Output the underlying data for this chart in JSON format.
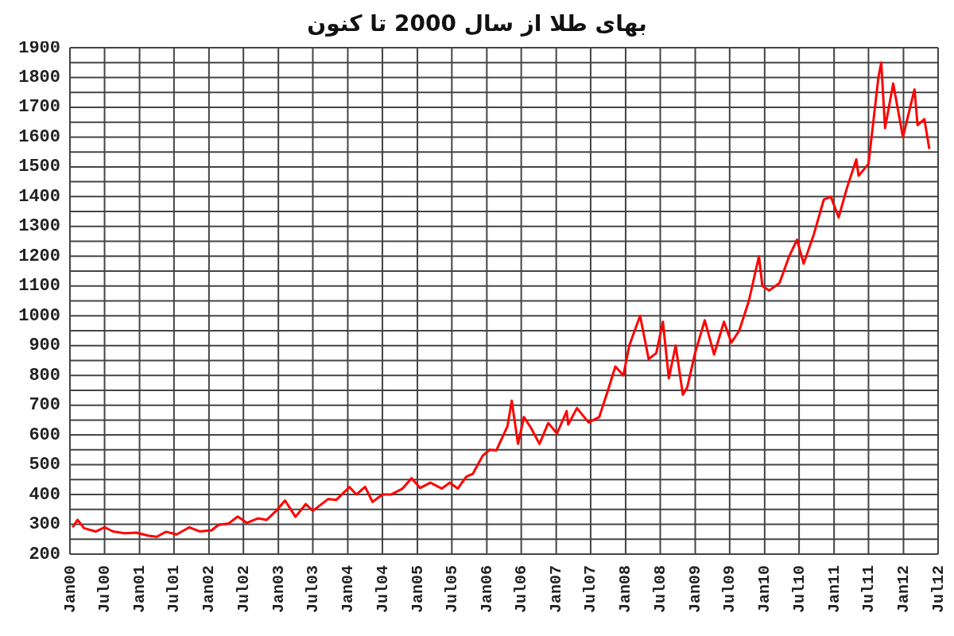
{
  "chart_data": {
    "type": "line",
    "title": "بهای طلا از سال 2000 تا کنون",
    "x": [
      "2000-01-15",
      "2000-02-10",
      "2000-03-15",
      "2000-05-15",
      "2000-07-01",
      "2000-08-15",
      "2000-10-15",
      "2000-12-15",
      "2001-02-15",
      "2001-04-01",
      "2001-05-20",
      "2001-07-15",
      "2001-09-20",
      "2001-11-15",
      "2002-01-15",
      "2002-02-20",
      "2002-04-15",
      "2002-06-01",
      "2002-07-20",
      "2002-09-15",
      "2002-11-01",
      "2002-12-20",
      "2003-02-05",
      "2003-04-01",
      "2003-05-25",
      "2003-07-01",
      "2003-09-20",
      "2003-11-01",
      "2004-01-10",
      "2004-02-15",
      "2004-04-01",
      "2004-05-10",
      "2004-07-01",
      "2004-08-15",
      "2004-10-15",
      "2004-12-01",
      "2005-01-15",
      "2005-03-10",
      "2005-05-10",
      "2005-06-20",
      "2005-08-01",
      "2005-09-15",
      "2005-10-20",
      "2005-12-10",
      "2006-01-15",
      "2006-02-20",
      "2006-04-20",
      "2006-05-12",
      "2006-06-14",
      "2006-07-15",
      "2006-08-20",
      "2006-10-05",
      "2006-11-20",
      "2007-01-05",
      "2007-02-25",
      "2007-03-05",
      "2007-04-20",
      "2007-06-20",
      "2007-08-15",
      "2007-09-25",
      "2007-11-08",
      "2007-12-20",
      "2008-01-20",
      "2008-03-17",
      "2008-05-01",
      "2008-06-10",
      "2008-07-15",
      "2008-08-15",
      "2008-09-20",
      "2008-10-28",
      "2008-11-20",
      "2008-12-31",
      "2009-02-20",
      "2009-04-10",
      "2009-06-01",
      "2009-07-10",
      "2009-08-20",
      "2009-10-10",
      "2009-12-02",
      "2009-12-20",
      "2010-01-25",
      "2010-03-20",
      "2010-05-10",
      "2010-06-20",
      "2010-07-25",
      "2010-09-15",
      "2010-11-08",
      "2010-12-15",
      "2011-01-25",
      "2011-03-10",
      "2011-04-28",
      "2011-05-10",
      "2011-07-01",
      "2011-08-22",
      "2011-09-06",
      "2011-09-26",
      "2011-11-08",
      "2011-12-29",
      "2012-02-28",
      "2012-03-15",
      "2012-04-20",
      "2012-05-16"
    ],
    "series": [
      {
        "color": "#ff0000",
        "values": [
          290,
          315,
          287,
          276,
          290,
          276,
          270,
          272,
          262,
          258,
          275,
          266,
          290,
          276,
          280,
          298,
          303,
          326,
          305,
          320,
          315,
          345,
          380,
          325,
          368,
          345,
          385,
          382,
          425,
          400,
          426,
          375,
          400,
          400,
          420,
          455,
          422,
          440,
          420,
          440,
          420,
          460,
          470,
          530,
          550,
          548,
          630,
          715,
          570,
          660,
          625,
          570,
          640,
          605,
          680,
          635,
          690,
          642,
          660,
          740,
          830,
          800,
          900,
          1000,
          855,
          875,
          980,
          790,
          900,
          735,
          760,
          875,
          985,
          870,
          980,
          910,
          950,
          1050,
          1200,
          1100,
          1085,
          1110,
          1200,
          1255,
          1175,
          1270,
          1390,
          1400,
          1330,
          1430,
          1525,
          1470,
          1510,
          1800,
          1850,
          1630,
          1780,
          1600,
          1760,
          1640,
          1660,
          1560
        ]
      }
    ],
    "xlim": [
      "2000-01",
      "2012-07"
    ],
    "xticks": [
      {
        "value": "2000-01",
        "label": "Jan00"
      },
      {
        "value": "2000-07",
        "label": "Jul00"
      },
      {
        "value": "2001-01",
        "label": "Jan01"
      },
      {
        "value": "2001-07",
        "label": "Jul01"
      },
      {
        "value": "2002-01",
        "label": "Jan02"
      },
      {
        "value": "2002-07",
        "label": "Jul02"
      },
      {
        "value": "2003-01",
        "label": "Jan03"
      },
      {
        "value": "2003-07",
        "label": "Jul03"
      },
      {
        "value": "2004-01",
        "label": "Jan04"
      },
      {
        "value": "2004-07",
        "label": "Jul04"
      },
      {
        "value": "2005-01",
        "label": "Jan05"
      },
      {
        "value": "2005-07",
        "label": "Jul05"
      },
      {
        "value": "2006-01",
        "label": "Jan06"
      },
      {
        "value": "2006-07",
        "label": "Jul06"
      },
      {
        "value": "2007-01",
        "label": "Jan07"
      },
      {
        "value": "2007-07",
        "label": "Jul07"
      },
      {
        "value": "2008-01",
        "label": "Jan08"
      },
      {
        "value": "2008-07",
        "label": "Jul08"
      },
      {
        "value": "2009-01",
        "label": "Jan09"
      },
      {
        "value": "2009-07",
        "label": "Jul09"
      },
      {
        "value": "2010-01",
        "label": "Jan10"
      },
      {
        "value": "2010-07",
        "label": "Jul10"
      },
      {
        "value": "2011-01",
        "label": "Jan11"
      },
      {
        "value": "2011-07",
        "label": "Jul11"
      },
      {
        "value": "2012-01",
        "label": "Jan12"
      },
      {
        "value": "2012-07",
        "label": "Jul12"
      }
    ],
    "ylim": [
      200,
      1900
    ],
    "yticks": [
      200,
      {
        "value": 250,
        "label": null
      },
      300,
      {
        "value": 350,
        "label": null
      },
      400,
      {
        "value": 450,
        "label": null
      },
      500,
      {
        "value": 550,
        "label": null
      },
      600,
      {
        "value": 650,
        "label": null
      },
      700,
      {
        "value": 750,
        "label": null
      },
      800,
      {
        "value": 850,
        "label": null
      },
      900,
      {
        "value": 950,
        "label": null
      },
      1000,
      {
        "value": 1050,
        "label": null
      },
      1100,
      {
        "value": 1150,
        "label": null
      },
      1200,
      {
        "value": 1250,
        "label": null
      },
      1300,
      {
        "value": 1350,
        "label": null
      },
      1400,
      {
        "value": 1450,
        "label": null
      },
      1500,
      {
        "value": 1550,
        "label": null
      },
      1600,
      {
        "value": 1650,
        "label": null
      },
      1700,
      {
        "value": 1750,
        "label": null
      },
      1800,
      {
        "value": 1850,
        "label": null
      },
      1900
    ],
    "grid": true,
    "marker": "none",
    "line_style": "solid"
  }
}
